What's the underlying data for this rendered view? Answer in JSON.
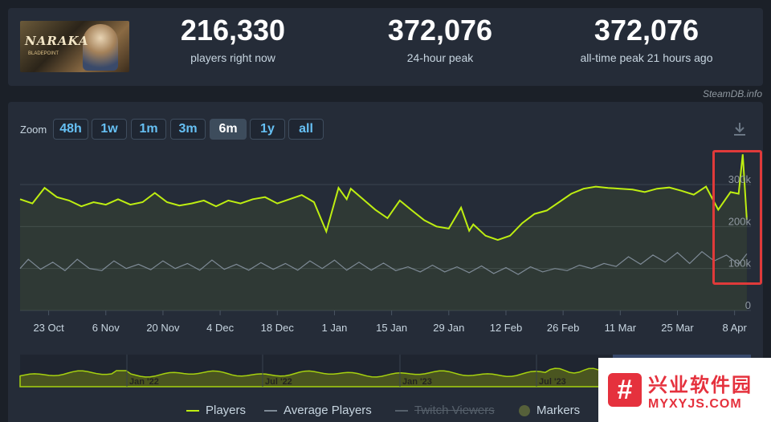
{
  "stats": [
    {
      "value": "216,330",
      "label": "players right now"
    },
    {
      "value": "372,076",
      "label": "24-hour peak"
    },
    {
      "value": "372,076",
      "label": "all-time peak 21 hours ago"
    }
  ],
  "game_thumb": {
    "logo": "NARAKA",
    "sub": "BLADEPOINT"
  },
  "credit": "SteamDB.info",
  "zoom": {
    "label": "Zoom",
    "buttons": [
      "48h",
      "1w",
      "1m",
      "3m",
      "6m",
      "1y",
      "all"
    ],
    "active": "6m"
  },
  "legend": {
    "players": "Players",
    "average": "Average Players",
    "twitch": "Twitch Viewers",
    "markers": "Markers"
  },
  "colors": {
    "players": "#beee11",
    "average": "#7e8a96",
    "grid": "#3a4350",
    "highlight": "#e03a3a"
  },
  "watermark": {
    "cn": "兴业软件园",
    "en": "MYXYJS.COM"
  },
  "chart_data": {
    "type": "line",
    "y_ticks": [
      "0",
      "100k",
      "200k",
      "300k"
    ],
    "ylim": [
      0,
      300000
    ],
    "x_ticks": [
      "23 Oct",
      "6 Nov",
      "20 Nov",
      "4 Dec",
      "18 Dec",
      "1 Jan",
      "15 Jan",
      "29 Jan",
      "12 Feb",
      "26 Feb",
      "11 Mar",
      "25 Mar",
      "8 Apr"
    ],
    "x_tick_days": [
      7,
      21,
      35,
      49,
      63,
      77,
      91,
      105,
      119,
      133,
      147,
      161,
      175
    ],
    "x_range_days": [
      0,
      179
    ],
    "series": [
      {
        "name": "Players",
        "x": [
          0,
          3,
          6,
          9,
          12,
          15,
          18,
          21,
          24,
          27,
          30,
          33,
          36,
          39,
          42,
          45,
          48,
          51,
          54,
          57,
          60,
          63,
          66,
          69,
          72,
          75,
          78,
          80,
          81,
          84,
          87,
          90,
          93,
          96,
          99,
          102,
          105,
          108,
          110,
          111,
          114,
          117,
          120,
          123,
          126,
          129,
          132,
          135,
          138,
          141,
          144,
          147,
          150,
          153,
          156,
          159,
          162,
          165,
          168,
          171,
          174,
          176,
          177,
          178
        ],
        "values": [
          265000,
          255000,
          292000,
          270000,
          262000,
          248000,
          258000,
          252000,
          265000,
          252000,
          258000,
          280000,
          258000,
          250000,
          255000,
          262000,
          248000,
          262000,
          255000,
          265000,
          270000,
          255000,
          265000,
          275000,
          258000,
          188000,
          292000,
          265000,
          290000,
          265000,
          240000,
          220000,
          262000,
          238000,
          215000,
          200000,
          195000,
          245000,
          190000,
          205000,
          178000,
          168000,
          178000,
          208000,
          230000,
          238000,
          258000,
          278000,
          290000,
          295000,
          292000,
          290000,
          288000,
          282000,
          290000,
          293000,
          285000,
          276000,
          295000,
          240000,
          282000,
          278000,
          372076,
          216330
        ]
      },
      {
        "name": "Average Players",
        "x": [
          0,
          2,
          5,
          8,
          11,
          14,
          17,
          20,
          23,
          26,
          29,
          32,
          35,
          38,
          41,
          44,
          47,
          50,
          53,
          56,
          59,
          62,
          65,
          68,
          71,
          74,
          77,
          80,
          83,
          86,
          89,
          92,
          95,
          98,
          101,
          104,
          107,
          110,
          113,
          116,
          119,
          122,
          125,
          128,
          131,
          134,
          137,
          140,
          143,
          146,
          149,
          152,
          155,
          158,
          161,
          164,
          167,
          170,
          173,
          176,
          178
        ],
        "values": [
          100000,
          122000,
          98000,
          115000,
          95000,
          122000,
          100000,
          95000,
          118000,
          100000,
          110000,
          97000,
          118000,
          100000,
          112000,
          96000,
          120000,
          98000,
          110000,
          96000,
          114000,
          98000,
          112000,
          96000,
          118000,
          100000,
          120000,
          96000,
          115000,
          96000,
          113000,
          95000,
          104000,
          92000,
          108000,
          92000,
          104000,
          90000,
          106000,
          88000,
          102000,
          86000,
          104000,
          92000,
          100000,
          95000,
          108000,
          100000,
          112000,
          105000,
          128000,
          110000,
          132000,
          115000,
          138000,
          112000,
          140000,
          118000,
          132000,
          110000,
          135000
        ]
      }
    ],
    "navigator_ticks": [
      "Jan '22",
      "Jul '22",
      "Jan '23",
      "Jul '23"
    ]
  }
}
